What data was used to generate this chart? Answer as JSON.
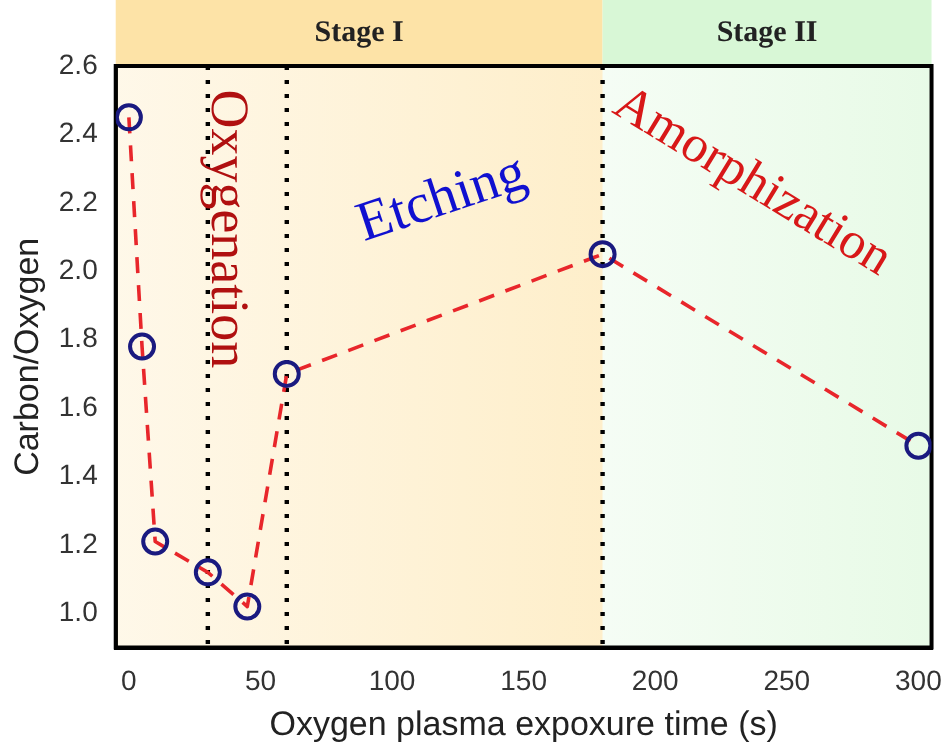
{
  "chart_data": {
    "type": "line",
    "xlabel": "Oxygen plasma expoxure time (s)",
    "ylabel": "Carbon/Oxygen",
    "x": [
      0,
      5,
      10,
      30,
      45,
      60,
      180,
      300
    ],
    "series": [
      {
        "color": "#e8262b",
        "values": [
          2.45,
          1.78,
          1.21,
          1.12,
          1.02,
          1.7,
          2.05,
          1.49
        ]
      }
    ],
    "xlim": [
      -5,
      305
    ],
    "xticks": [
      0,
      50,
      100,
      150,
      200,
      250,
      300
    ],
    "ylim": [
      0.9,
      2.6
    ],
    "yticks": [
      {
        "value": 1,
        "label": "1.0"
      },
      1.2,
      1.4,
      1.6,
      1.8,
      {
        "value": 2,
        "label": "2.0"
      },
      2.2,
      2.4,
      2.6
    ],
    "marker": "circle",
    "line_style": "dashed",
    "grid": false,
    "legend": false,
    "bands": [
      {
        "axis": "x",
        "from": -5,
        "to": 180,
        "label": "Stage I",
        "color": "#fde3a7"
      },
      {
        "axis": "x",
        "from": 180,
        "to": 305,
        "label": "Stage II",
        "color": "#d8f7d6"
      }
    ],
    "ref_lines": [
      {
        "axis": "x",
        "value": 30,
        "line_style": "dotted",
        "color": "#000000"
      },
      {
        "axis": "x",
        "value": 60,
        "line_style": "dotted",
        "color": "#000000"
      },
      {
        "axis": "x",
        "value": 180,
        "line_style": "dotted",
        "color": "#000000"
      }
    ],
    "annotations": [
      "Oxygenation",
      "Etching",
      "Amorphization"
    ]
  }
}
